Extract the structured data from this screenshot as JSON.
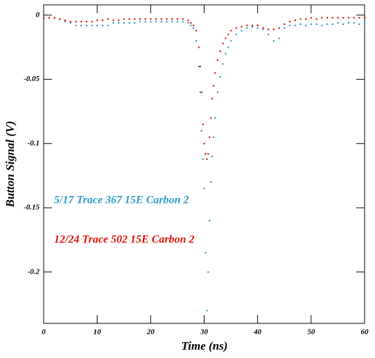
{
  "chart_data": {
    "type": "scatter",
    "x_label": "Time (ns)",
    "y_label": "Button Signal (V)",
    "x": [
      0,
      1,
      2,
      3,
      4,
      5,
      6,
      7,
      8,
      9,
      10,
      11,
      12,
      13,
      14,
      15,
      16,
      17,
      18,
      19,
      20,
      21,
      22,
      23,
      24,
      25,
      26,
      27,
      27.5,
      28,
      28.5,
      29,
      29.25,
      29.5,
      29.75,
      30,
      30.25,
      30.5,
      30.75,
      31,
      31.25,
      31.5,
      31.75,
      32,
      32.5,
      33,
      33.5,
      34,
      34.5,
      35,
      36,
      37,
      38,
      39,
      40,
      41,
      42,
      43,
      44,
      45,
      46,
      47,
      48,
      49,
      50,
      51,
      52,
      53,
      54,
      55,
      56,
      57,
      58,
      59,
      60
    ],
    "series": [
      {
        "name": "5/17 Trace 367 15E Carbon 2",
        "color": "#2f9bc9",
        "values": [
          -0.002,
          -0.002,
          -0.002,
          -0.003,
          -0.005,
          -0.006,
          -0.008,
          -0.008,
          -0.008,
          -0.008,
          -0.008,
          -0.008,
          -0.008,
          -0.006,
          -0.006,
          -0.006,
          -0.006,
          -0.006,
          -0.005,
          -0.005,
          -0.005,
          -0.005,
          -0.005,
          -0.005,
          -0.005,
          -0.005,
          -0.005,
          -0.006,
          -0.008,
          -0.01,
          -0.02,
          -0.04,
          -0.06,
          -0.09,
          -0.112,
          -0.135,
          -0.185,
          -0.23,
          -0.2,
          -0.16,
          -0.13,
          -0.11,
          -0.095,
          -0.08,
          -0.06,
          -0.048,
          -0.038,
          -0.03,
          -0.025,
          -0.02,
          -0.015,
          -0.012,
          -0.01,
          -0.009,
          -0.01,
          -0.011,
          -0.015,
          -0.02,
          -0.018,
          -0.01,
          -0.008,
          -0.008,
          -0.007,
          -0.008,
          -0.007,
          -0.007,
          -0.008,
          -0.007,
          -0.007,
          -0.006,
          -0.007,
          -0.006,
          -0.006,
          -0.007,
          -0.006
        ]
      },
      {
        "name": "12/24 Trace 502 15E Carbon 2",
        "color": "#e3120b",
        "values": [
          -0.002,
          -0.002,
          -0.002,
          -0.003,
          -0.004,
          -0.005,
          -0.005,
          -0.005,
          -0.005,
          -0.005,
          -0.004,
          -0.004,
          -0.003,
          -0.004,
          -0.004,
          -0.003,
          -0.003,
          -0.003,
          -0.003,
          -0.003,
          -0.003,
          -0.003,
          -0.003,
          -0.003,
          -0.003,
          -0.003,
          -0.003,
          -0.004,
          -0.006,
          -0.008,
          -0.012,
          -0.025,
          -0.04,
          -0.06,
          -0.085,
          -0.1,
          -0.108,
          -0.112,
          -0.108,
          -0.095,
          -0.08,
          -0.065,
          -0.055,
          -0.045,
          -0.035,
          -0.028,
          -0.022,
          -0.018,
          -0.015,
          -0.012,
          -0.01,
          -0.009,
          -0.008,
          -0.008,
          -0.008,
          -0.01,
          -0.011,
          -0.011,
          -0.01,
          -0.007,
          -0.005,
          -0.004,
          -0.003,
          -0.003,
          -0.002,
          -0.003,
          -0.002,
          -0.002,
          -0.002,
          -0.002,
          -0.002,
          -0.002,
          -0.002,
          -0.002,
          -0.002
        ]
      }
    ],
    "xlim": [
      0,
      60
    ],
    "ylim": [
      -0.24,
      0.008
    ],
    "xticks": [
      0,
      10,
      20,
      30,
      40,
      50,
      60
    ],
    "yticks": [
      0,
      -0.05,
      -0.1,
      -0.15,
      -0.2
    ]
  }
}
